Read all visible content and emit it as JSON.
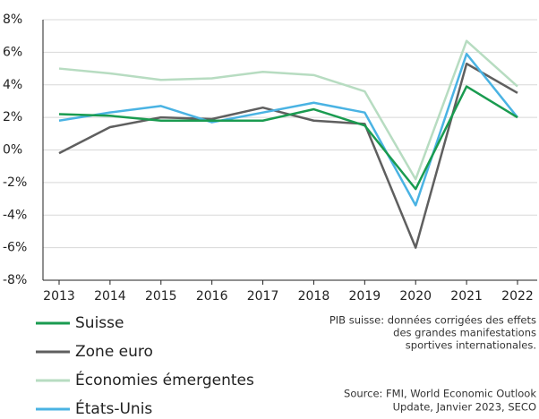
{
  "chart_data": {
    "type": "line",
    "categories": [
      "2013",
      "2014",
      "2015",
      "2016",
      "2017",
      "2018",
      "2019",
      "2020",
      "2021",
      "2022"
    ],
    "series": [
      {
        "name": "Suisse",
        "color": "#1a9b50",
        "values": [
          2.2,
          2.1,
          1.8,
          1.8,
          1.8,
          2.5,
          1.5,
          -2.4,
          3.9,
          2.0
        ]
      },
      {
        "name": "Zone euro",
        "color": "#5f5f5f",
        "values": [
          -0.2,
          1.4,
          2.0,
          1.9,
          2.6,
          1.8,
          1.6,
          -6.0,
          5.3,
          3.5
        ]
      },
      {
        "name": "Économies émergentes",
        "color": "#b7dcc1",
        "values": [
          5.0,
          4.7,
          4.3,
          4.4,
          4.8,
          4.6,
          3.6,
          -1.8,
          6.7,
          3.9
        ]
      },
      {
        "name": "États-Unis",
        "color": "#4ab3e3",
        "values": [
          1.8,
          2.3,
          2.7,
          1.7,
          2.3,
          2.9,
          2.3,
          -3.4,
          5.9,
          2.0
        ]
      }
    ],
    "ylim": [
      -8,
      8
    ],
    "yticks": [
      {
        "value": -8,
        "label": "-8%"
      },
      {
        "value": -6,
        "label": "-6%"
      },
      {
        "value": -4,
        "label": "-4%"
      },
      {
        "value": -2,
        "label": "-2%"
      },
      {
        "value": 0,
        "label": "0%"
      },
      {
        "value": 2,
        "label": "2%"
      },
      {
        "value": 4,
        "label": "4%"
      },
      {
        "value": 6,
        "label": "6%"
      },
      {
        "value": 8,
        "label": "8%"
      }
    ],
    "grid": true,
    "annotations": [
      [
        "PIB suisse: données corrigées des effets",
        "des grandes manifestations",
        "sportives internationales."
      ],
      [
        "Source: FMI, World Economic Outlook",
        "Update, Janvier 2023, SECO"
      ]
    ]
  }
}
